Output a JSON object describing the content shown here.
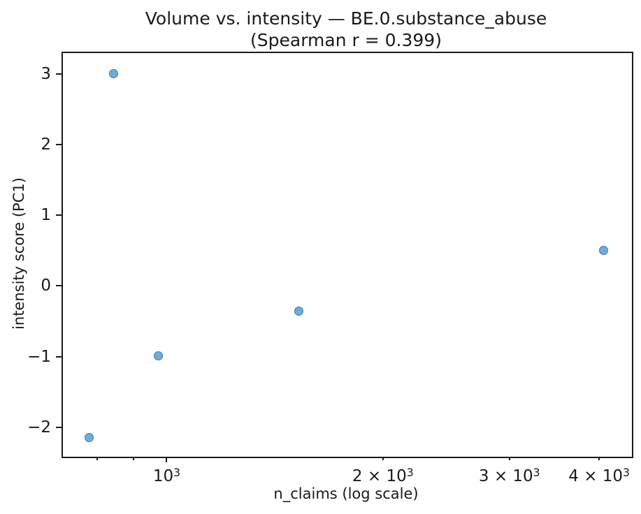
{
  "header": {
    "title_line1": "Volume vs. intensity — BE.0.substance_abuse",
    "title_line2": "(Spearman r = 0.399)"
  },
  "chart_data": {
    "type": "scatter",
    "title": "Volume vs. intensity — BE.0.substance_abuse\n(Spearman r = 0.399)",
    "xlabel": "n_claims (log scale)",
    "ylabel": "intensity score (PC1)",
    "x_scale": "log",
    "y_scale": "linear",
    "xlim": [
      717,
      4423
    ],
    "ylim": [
      -2.4,
      3.3
    ],
    "grid": false,
    "legend": false,
    "spearman_r": 0.399,
    "marker_color": "#1f77b4",
    "marker_alpha": 0.7,
    "points": [
      {
        "x": 779,
        "y": -2.15
      },
      {
        "x": 844,
        "y": 3.01
      },
      {
        "x": 974,
        "y": -0.99
      },
      {
        "x": 1526,
        "y": -0.36
      },
      {
        "x": 4059,
        "y": 0.5
      }
    ],
    "x_ticks": {
      "major": [
        {
          "value": 1000,
          "label": "10^3"
        }
      ],
      "minor_labeled": [
        {
          "value": 2000,
          "label": "2 × 10^3"
        },
        {
          "value": 3000,
          "label": "3 × 10^3"
        },
        {
          "value": 4000,
          "label": "4 × 10^3"
        }
      ],
      "minor_unlabeled": [
        800,
        900
      ]
    },
    "y_ticks": [
      {
        "value": 3,
        "label": "3"
      },
      {
        "value": 2,
        "label": "2"
      },
      {
        "value": 1,
        "label": "1"
      },
      {
        "value": 0,
        "label": "0"
      },
      {
        "value": -1,
        "label": "−1"
      },
      {
        "value": -2,
        "label": "−2"
      }
    ]
  }
}
